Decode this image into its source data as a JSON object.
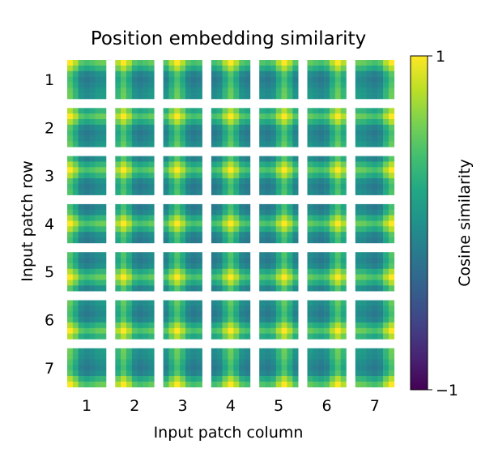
{
  "chart_data": {
    "type": "heatmap",
    "title": "Position embedding similarity",
    "xlabel": "Input patch column",
    "ylabel": "Input patch row",
    "grid_rows": 7,
    "grid_cols": 7,
    "patch_resolution": 7,
    "row_tick_labels": [
      "1",
      "2",
      "3",
      "4",
      "5",
      "6",
      "7"
    ],
    "col_tick_labels": [
      "1",
      "2",
      "3",
      "4",
      "5",
      "6",
      "7"
    ],
    "colorbar": {
      "label": "Cosine similarity",
      "min": -1,
      "max": 1,
      "tick_values": [
        1,
        -1
      ],
      "tick_labels": [
        "1",
        "−1"
      ],
      "colormap": "viridis"
    },
    "pattern": {
      "description": "Each small panel is the cosine similarity between the position embedding of one input patch and all 7x7 positions; brightest at the patch's own row and column.",
      "self_value": 1.0,
      "same_row_or_col_value": 0.5,
      "background_value": -0.1
    }
  }
}
